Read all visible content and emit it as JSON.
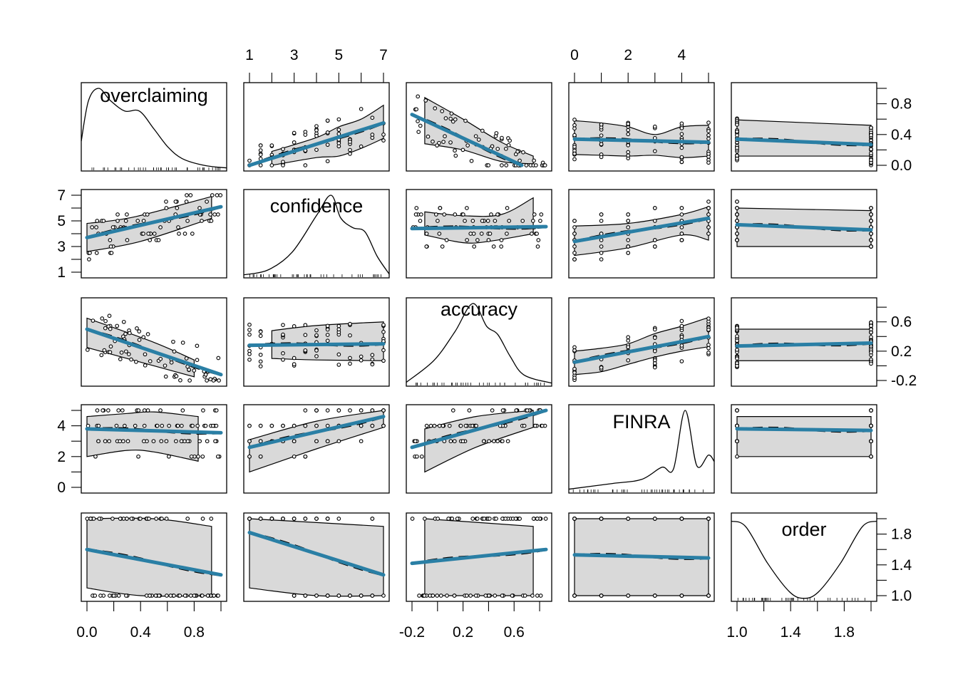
{
  "chart_data": {
    "type": "scatter",
    "title": "",
    "subtitle": "Scatterplot matrix (pairs panels) with density diagonals, linear fits, loess and confidence bands",
    "variables": [
      "overclaiming",
      "confidence",
      "accuracy",
      "FINRA",
      "order"
    ],
    "ranges": {
      "overclaiming": [
        0.0,
        1.0
      ],
      "confidence": [
        1,
        7
      ],
      "accuracy": [
        -0.2,
        0.85
      ],
      "FINRA": [
        0,
        5
      ],
      "order": [
        1.0,
        2.0
      ]
    },
    "axis_ticks": {
      "top": {
        "confidence": {
          "labels": [
            "1",
            "3",
            "5",
            "7"
          ],
          "ticks": [
            1,
            2,
            3,
            4,
            5,
            6,
            7
          ]
        },
        "FINRA": {
          "labels": [
            "0",
            "2",
            "4"
          ],
          "ticks": [
            0,
            1,
            2,
            3,
            4,
            5
          ]
        }
      },
      "bottom": {
        "overclaiming": {
          "labels": [
            "0.0",
            "0.4",
            "0.8"
          ],
          "ticks": [
            0.0,
            0.2,
            0.4,
            0.6,
            0.8,
            1.0
          ]
        },
        "accuracy": {
          "labels": [
            "-0.2",
            "0.2",
            "0.6"
          ],
          "ticks": [
            -0.2,
            0.0,
            0.2,
            0.4,
            0.6,
            0.8
          ]
        },
        "order": {
          "labels": [
            "1.0",
            "1.4",
            "1.8"
          ],
          "ticks": [
            1.0,
            1.2,
            1.4,
            1.6,
            1.8,
            2.0
          ]
        }
      },
      "left": {
        "confidence": {
          "labels": [
            "1",
            "3",
            "5",
            "7"
          ],
          "ticks": [
            1,
            2,
            3,
            4,
            5,
            6,
            7
          ]
        },
        "FINRA": {
          "labels": [
            "0",
            "2",
            "4"
          ],
          "ticks": [
            0,
            1,
            2,
            3,
            4,
            5
          ]
        }
      },
      "right": {
        "overclaiming": {
          "labels": [
            "0.0",
            "0.4",
            "0.8"
          ],
          "ticks": [
            0.0,
            0.2,
            0.4,
            0.6,
            0.8,
            1.0
          ]
        },
        "accuracy": {
          "labels": [
            "-0.2",
            "0.2",
            "0.6"
          ],
          "ticks": [
            -0.2,
            0.0,
            0.2,
            0.4,
            0.6,
            0.8
          ]
        },
        "order": {
          "labels": [
            "1.0",
            "1.4",
            "1.8"
          ],
          "ticks": [
            1.0,
            1.2,
            1.4,
            1.6,
            1.8,
            2.0
          ]
        }
      }
    },
    "fit_color": "#2a7fa5",
    "band_color": "#d9d9d9",
    "fits": [
      {
        "y": "overclaiming",
        "x": "confidence",
        "from": [
          1,
          0.0
        ],
        "to": [
          7,
          0.55
        ],
        "band_lo": [
          [
            2,
            0.0
          ],
          [
            4,
            0.1
          ],
          [
            5,
            0.12
          ],
          [
            6,
            0.22
          ],
          [
            7,
            0.35
          ]
        ],
        "band_hi": [
          [
            2,
            0.18
          ],
          [
            4,
            0.36
          ],
          [
            5,
            0.5
          ],
          [
            6,
            0.6
          ],
          [
            7,
            0.78
          ]
        ]
      },
      {
        "y": "overclaiming",
        "x": "accuracy",
        "from": [
          -0.2,
          0.66
        ],
        "to": [
          0.66,
          0.0
        ],
        "band_lo": [
          [
            -0.1,
            0.28
          ],
          [
            0.2,
            0.2
          ],
          [
            0.5,
            0.05
          ],
          [
            0.75,
            0.02
          ]
        ],
        "band_hi": [
          [
            -0.1,
            0.88
          ],
          [
            0.2,
            0.6
          ],
          [
            0.5,
            0.3
          ],
          [
            0.75,
            0.12
          ]
        ]
      },
      {
        "y": "overclaiming",
        "x": "FINRA",
        "from": [
          0,
          0.34
        ],
        "to": [
          5,
          0.3
        ],
        "band_lo": [
          [
            0,
            0.14
          ],
          [
            1,
            0.13
          ],
          [
            2,
            0.12
          ],
          [
            3,
            0.13
          ],
          [
            4,
            0.1
          ],
          [
            5,
            0.12
          ]
        ],
        "band_hi": [
          [
            0,
            0.58
          ],
          [
            1,
            0.55
          ],
          [
            2,
            0.5
          ],
          [
            3,
            0.4
          ],
          [
            4,
            0.5
          ],
          [
            5,
            0.52
          ]
        ]
      },
      {
        "y": "overclaiming",
        "x": "order",
        "from": [
          1,
          0.34
        ],
        "to": [
          2,
          0.27
        ],
        "band_lo": [
          [
            1,
            0.12
          ],
          [
            2,
            0.12
          ]
        ],
        "band_hi": [
          [
            1,
            0.59
          ],
          [
            2,
            0.52
          ]
        ]
      },
      {
        "y": "confidence",
        "x": "overclaiming",
        "from": [
          0,
          3.7
        ],
        "to": [
          1,
          6.1
        ],
        "band_lo": [
          [
            0,
            2.6
          ],
          [
            0.4,
            3.4
          ],
          [
            0.93,
            5.2
          ]
        ],
        "band_hi": [
          [
            0,
            4.8
          ],
          [
            0.35,
            5.3
          ],
          [
            0.93,
            6.9
          ]
        ]
      },
      {
        "y": "confidence",
        "x": "accuracy",
        "from": [
          -0.2,
          4.4
        ],
        "to": [
          0.85,
          4.55
        ],
        "band_lo": [
          [
            -0.1,
            3.9
          ],
          [
            0.2,
            3.3
          ],
          [
            0.4,
            3.4
          ],
          [
            0.75,
            4.0
          ]
        ],
        "band_hi": [
          [
            -0.1,
            5.7
          ],
          [
            0.2,
            5.4
          ],
          [
            0.5,
            5.5
          ],
          [
            0.75,
            6.8
          ]
        ]
      },
      {
        "y": "confidence",
        "x": "FINRA",
        "from": [
          0,
          3.4
        ],
        "to": [
          5,
          5.2
        ],
        "band_lo": [
          [
            0,
            2.3
          ],
          [
            2,
            2.9
          ],
          [
            4,
            3.9
          ],
          [
            5,
            3.5
          ]
        ],
        "band_hi": [
          [
            0,
            4.6
          ],
          [
            2,
            4.8
          ],
          [
            4,
            5.5
          ],
          [
            5,
            6.1
          ]
        ]
      },
      {
        "y": "confidence",
        "x": "order",
        "from": [
          1,
          4.7
        ],
        "to": [
          2,
          4.3
        ],
        "band_lo": [
          [
            1,
            3.0
          ],
          [
            2,
            3.0
          ]
        ],
        "band_hi": [
          [
            1,
            6.0
          ],
          [
            2,
            5.8
          ]
        ]
      },
      {
        "y": "accuracy",
        "x": "overclaiming",
        "from": [
          0,
          0.5
        ],
        "to": [
          1,
          -0.12
        ],
        "band_lo": [
          [
            0,
            0.25
          ],
          [
            0.5,
            0.0
          ],
          [
            0.8,
            -0.15
          ]
        ],
        "band_hi": [
          [
            0,
            0.65
          ],
          [
            0.5,
            0.32
          ],
          [
            0.8,
            0.08
          ]
        ]
      },
      {
        "y": "accuracy",
        "x": "confidence",
        "from": [
          1,
          0.28
        ],
        "to": [
          7,
          0.3
        ],
        "band_lo": [
          [
            2,
            0.1
          ],
          [
            4,
            0.08
          ],
          [
            7,
            0.07
          ]
        ],
        "band_hi": [
          [
            2,
            0.48
          ],
          [
            4,
            0.55
          ],
          [
            7,
            0.6
          ]
        ]
      },
      {
        "y": "accuracy",
        "x": "FINRA",
        "from": [
          0,
          0.05
        ],
        "to": [
          5,
          0.4
        ],
        "band_lo": [
          [
            0,
            -0.12
          ],
          [
            1,
            -0.08
          ],
          [
            2,
            0.02
          ],
          [
            3,
            0.12
          ],
          [
            4,
            0.2
          ],
          [
            5,
            0.26
          ]
        ],
        "band_hi": [
          [
            0,
            0.2
          ],
          [
            1,
            0.24
          ],
          [
            2,
            0.3
          ],
          [
            3,
            0.44
          ],
          [
            4,
            0.54
          ],
          [
            5,
            0.66
          ]
        ]
      },
      {
        "y": "accuracy",
        "x": "order",
        "from": [
          1,
          0.27
        ],
        "to": [
          2,
          0.31
        ],
        "band_lo": [
          [
            1,
            0.07
          ],
          [
            2,
            0.07
          ]
        ],
        "band_hi": [
          [
            1,
            0.5
          ],
          [
            2,
            0.5
          ]
        ]
      },
      {
        "y": "FINRA",
        "x": "overclaiming",
        "from": [
          0,
          3.8
        ],
        "to": [
          1,
          3.55
        ],
        "band_lo": [
          [
            0,
            2.0
          ],
          [
            0.3,
            2.4
          ],
          [
            0.5,
            2.3
          ],
          [
            0.83,
            1.7
          ]
        ],
        "band_hi": [
          [
            0,
            4.6
          ],
          [
            0.3,
            4.8
          ],
          [
            0.5,
            4.9
          ],
          [
            0.83,
            4.6
          ]
        ]
      },
      {
        "y": "FINRA",
        "x": "confidence",
        "from": [
          1,
          2.6
        ],
        "to": [
          7,
          4.6
        ],
        "band_lo": [
          [
            1,
            1.0
          ],
          [
            4,
            2.5
          ],
          [
            7,
            3.9
          ]
        ],
        "band_hi": [
          [
            1,
            3.1
          ],
          [
            4,
            4.3
          ],
          [
            7,
            5.0
          ]
        ]
      },
      {
        "y": "FINRA",
        "x": "accuracy",
        "from": [
          -0.2,
          2.6
        ],
        "to": [
          0.85,
          5.0
        ],
        "band_lo": [
          [
            -0.1,
            1.0
          ],
          [
            0.3,
            2.6
          ],
          [
            0.75,
            3.9
          ]
        ],
        "band_hi": [
          [
            -0.1,
            3.8
          ],
          [
            0.3,
            4.6
          ],
          [
            0.75,
            5.0
          ]
        ]
      },
      {
        "y": "FINRA",
        "x": "order",
        "from": [
          1,
          3.8
        ],
        "to": [
          2,
          3.7
        ],
        "band_lo": [
          [
            1,
            2.0
          ],
          [
            2,
            2.0
          ]
        ],
        "band_hi": [
          [
            1,
            4.6
          ],
          [
            2,
            4.6
          ]
        ]
      },
      {
        "y": "order",
        "x": "overclaiming",
        "from": [
          0,
          1.6
        ],
        "to": [
          1,
          1.27
        ],
        "band_lo": [
          [
            0,
            1.1
          ],
          [
            0.4,
            1.0
          ],
          [
            0.93,
            1.0
          ]
        ],
        "band_hi": [
          [
            0,
            2.0
          ],
          [
            0.5,
            2.0
          ],
          [
            0.93,
            1.9
          ]
        ]
      },
      {
        "y": "order",
        "x": "confidence",
        "from": [
          1,
          1.82
        ],
        "to": [
          7,
          1.27
        ],
        "band_lo": [
          [
            1,
            1.1
          ],
          [
            4,
            1.0
          ],
          [
            7,
            1.0
          ]
        ],
        "band_hi": [
          [
            1,
            2.0
          ],
          [
            7,
            1.9
          ]
        ]
      },
      {
        "y": "order",
        "x": "accuracy",
        "from": [
          -0.2,
          1.42
        ],
        "to": [
          0.85,
          1.6
        ],
        "band_lo": [
          [
            -0.1,
            1.0
          ],
          [
            0.75,
            1.0
          ]
        ],
        "band_hi": [
          [
            -0.1,
            2.0
          ],
          [
            0.75,
            1.9
          ]
        ]
      },
      {
        "y": "order",
        "x": "FINRA",
        "from": [
          0,
          1.53
        ],
        "to": [
          5,
          1.49
        ],
        "band_lo": [
          [
            0,
            1.0
          ],
          [
            5,
            1.0
          ]
        ],
        "band_hi": [
          [
            0,
            2.0
          ],
          [
            5,
            2.0
          ]
        ]
      }
    ],
    "densities": {
      "overclaiming": [
        [
          0.0,
          0.35
        ],
        [
          0.05,
          0.85
        ],
        [
          0.12,
          1.0
        ],
        [
          0.2,
          0.85
        ],
        [
          0.3,
          0.72
        ],
        [
          0.4,
          0.72
        ],
        [
          0.5,
          0.5
        ],
        [
          0.6,
          0.27
        ],
        [
          0.7,
          0.13
        ],
        [
          0.85,
          0.05
        ],
        [
          1.0,
          0.02
        ]
      ],
      "confidence": [
        [
          1,
          0.02
        ],
        [
          2,
          0.08
        ],
        [
          3,
          0.3
        ],
        [
          4,
          0.75
        ],
        [
          4.6,
          1.0
        ],
        [
          5,
          0.72
        ],
        [
          5.5,
          0.6
        ],
        [
          6,
          0.55
        ],
        [
          6.5,
          0.25
        ],
        [
          7,
          0.03
        ]
      ],
      "accuracy": [
        [
          -0.2,
          0.03
        ],
        [
          0.0,
          0.3
        ],
        [
          0.15,
          0.65
        ],
        [
          0.28,
          1.0
        ],
        [
          0.38,
          0.72
        ],
        [
          0.46,
          0.62
        ],
        [
          0.55,
          0.35
        ],
        [
          0.65,
          0.12
        ],
        [
          0.85,
          0.02
        ]
      ],
      "FINRA": [
        [
          0,
          0.03
        ],
        [
          1.5,
          0.1
        ],
        [
          2.5,
          0.15
        ],
        [
          3.2,
          0.3
        ],
        [
          3.6,
          0.28
        ],
        [
          4.0,
          1.0
        ],
        [
          4.4,
          0.32
        ],
        [
          4.8,
          0.45
        ],
        [
          5,
          0.37
        ]
      ],
      "order": [
        [
          1.0,
          0.97
        ],
        [
          1.1,
          0.9
        ],
        [
          1.25,
          0.45
        ],
        [
          1.4,
          0.1
        ],
        [
          1.5,
          0.02
        ],
        [
          1.6,
          0.1
        ],
        [
          1.75,
          0.45
        ],
        [
          1.9,
          0.9
        ],
        [
          2.0,
          0.97
        ]
      ]
    }
  }
}
